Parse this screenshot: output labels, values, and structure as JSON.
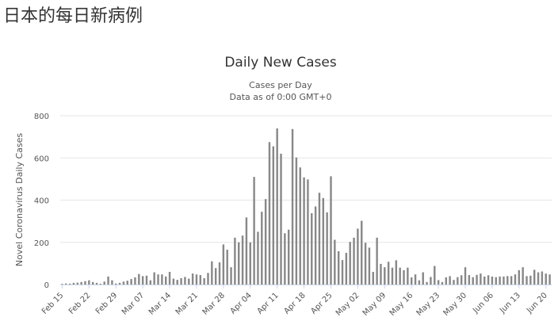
{
  "page": {
    "heading": "日本的每日新病例"
  },
  "chart_data": {
    "type": "bar",
    "title": "Daily New Cases",
    "subtitle": [
      "Cases per Day",
      "Data as of 0:00 GMT+0"
    ],
    "xlabel": "",
    "ylabel": "Novel Coronavirus Daily Cases",
    "ylim": [
      0,
      800
    ],
    "yticks": [
      0,
      200,
      400,
      600,
      800
    ],
    "grid": true,
    "color": "#888888",
    "start_date": "Feb 15",
    "x_ticks": [
      {
        "label": "Feb 15",
        "index": 0
      },
      {
        "label": "Feb 22",
        "index": 7
      },
      {
        "label": "Feb 29",
        "index": 14
      },
      {
        "label": "Mar 07",
        "index": 21
      },
      {
        "label": "Mar 14",
        "index": 28
      },
      {
        "label": "Mar 21",
        "index": 35
      },
      {
        "label": "Mar 28",
        "index": 42
      },
      {
        "label": "Apr 04",
        "index": 49
      },
      {
        "label": "Apr 11",
        "index": 56
      },
      {
        "label": "Apr 18",
        "index": 63
      },
      {
        "label": "Apr 25",
        "index": 70
      },
      {
        "label": "May 02",
        "index": 77
      },
      {
        "label": "May 09",
        "index": 84
      },
      {
        "label": "May 16",
        "index": 91
      },
      {
        "label": "May 23",
        "index": 98
      },
      {
        "label": "May 30",
        "index": 105
      },
      {
        "label": "Jun 06",
        "index": 112
      },
      {
        "label": "Jun 13",
        "index": 119
      },
      {
        "label": "Jun 20",
        "index": 126
      }
    ],
    "values": [
      3,
      5,
      4,
      8,
      9,
      12,
      16,
      20,
      12,
      8,
      4,
      14,
      38,
      20,
      5,
      8,
      14,
      18,
      26,
      34,
      50,
      40,
      42,
      20,
      58,
      48,
      48,
      38,
      60,
      28,
      22,
      30,
      36,
      28,
      52,
      48,
      45,
      30,
      55,
      110,
      78,
      105,
      190,
      165,
      82,
      222,
      200,
      232,
      318,
      200,
      510,
      250,
      345,
      405,
      675,
      655,
      740,
      620,
      243,
      260,
      737,
      602,
      555,
      508,
      498,
      338,
      370,
      435,
      410,
      342,
      513,
      212,
      158,
      116,
      150,
      202,
      222,
      265,
      302,
      198,
      175,
      60,
      222,
      98,
      82,
      108,
      80,
      115,
      80,
      68,
      80,
      34,
      48,
      20,
      58,
      12,
      36,
      88,
      21,
      12,
      34,
      40,
      22,
      35,
      44,
      82,
      45,
      35,
      46,
      52,
      38,
      44,
      38,
      35,
      38,
      38,
      40,
      40,
      48,
      68,
      82,
      40,
      42,
      70,
      58,
      62,
      52,
      48
    ]
  }
}
